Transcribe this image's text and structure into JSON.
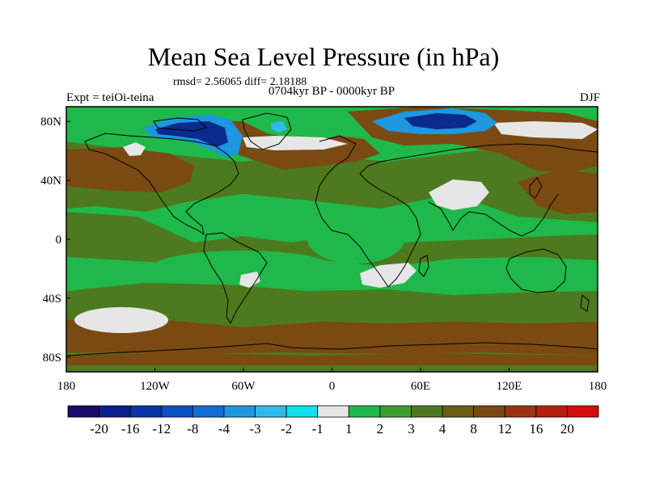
{
  "header": {
    "title": "Mean Sea Level Pressure (in hPa)",
    "stats": "rmsd= 2.56065 diff= 2.18188",
    "subtitle": "0704kyr BP - 0000kyr BP",
    "left_label": "Expt = teiOi-teina",
    "right_label": "DJF"
  },
  "map": {
    "x_ticks": [
      "180",
      "120W",
      "60W",
      "0",
      "60E",
      "120E",
      "180"
    ],
    "y_ticks": [
      "80N",
      "40N",
      "0",
      "40S",
      "80S"
    ],
    "lat_values": [
      80,
      40,
      0,
      -40,
      -80
    ],
    "lon_values": [
      -180,
      -120,
      -60,
      0,
      60,
      120,
      180
    ],
    "lon_range": [
      -180,
      180
    ],
    "lat_range": [
      -90,
      90
    ],
    "colors": {
      "background_field": "#1fb84a",
      "land_coast": "#000000",
      "high_brown": "#7a4a12",
      "olive": "#4d7a1e",
      "light_green": "#3c9e2e",
      "white_band": "#e6e6e6",
      "neg_blue_deep": "#0a2a8c",
      "neg_blue_mid": "#1f6fd0",
      "neg_blue_light": "#2bb3e6"
    }
  },
  "colorbar": {
    "labels": [
      "-20",
      "-16",
      "-12",
      "-8",
      "-4",
      "-3",
      "-2",
      "-1",
      "1",
      "2",
      "3",
      "4",
      "8",
      "12",
      "16",
      "20"
    ],
    "colors": [
      "#1a0a6b",
      "#0a1f8c",
      "#0b34a8",
      "#0c4fc0",
      "#0f6fd2",
      "#1e96e0",
      "#2fbbe8",
      "#11e0ee",
      "#e6e6e6",
      "#1fb84a",
      "#3c9e2e",
      "#4d7a1e",
      "#6b5e14",
      "#7a4a12",
      "#9a3410",
      "#b3200e",
      "#d60c0c"
    ]
  }
}
